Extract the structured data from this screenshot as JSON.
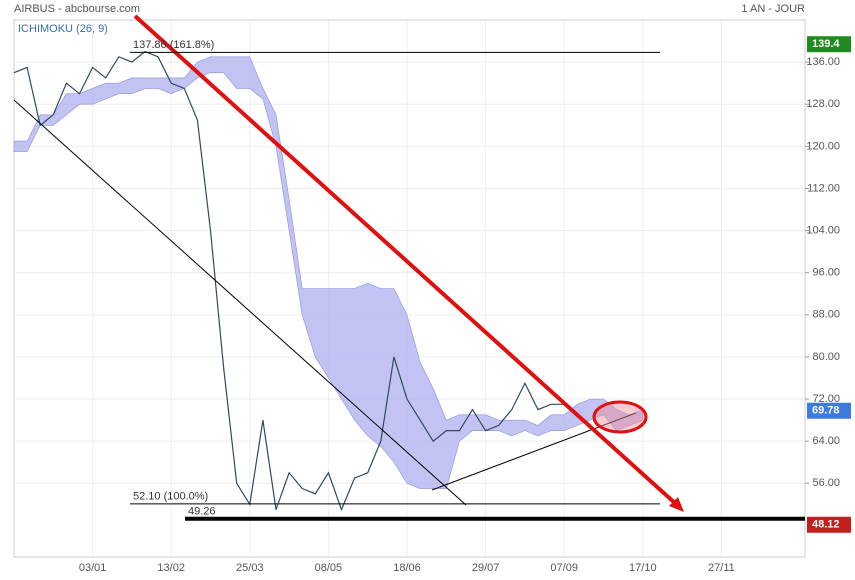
{
  "chart_data": {
    "type": "line",
    "title": "AIRBUS - abcbourse.com",
    "period": "1 AN - JOUR",
    "indicator": "ICHIMOKU (26, 9)",
    "categories": [
      null,
      null,
      null,
      null,
      null,
      null,
      "03/01",
      null,
      null,
      null,
      null,
      null,
      "13/02",
      null,
      null,
      null,
      null,
      null,
      "25/03",
      null,
      null,
      null,
      null,
      null,
      "08/05",
      null,
      null,
      null,
      null,
      null,
      "18/06",
      null,
      null,
      null,
      null,
      null,
      "29/07",
      null,
      null,
      null,
      null,
      null,
      "07/09",
      null,
      null,
      null,
      null,
      null,
      "17/10",
      null,
      null,
      null,
      null,
      null,
      "27/11",
      null,
      null,
      null,
      null,
      null,
      null
    ],
    "price": {
      "color": "#2f4a5e",
      "values": [
        134,
        135,
        124,
        126,
        132,
        130,
        135,
        133,
        137,
        136,
        138,
        137,
        132,
        131,
        125,
        104,
        78,
        56,
        52,
        68,
        51,
        58,
        55,
        54,
        58,
        51,
        57,
        58,
        64,
        80,
        72,
        68,
        64,
        66,
        66,
        70,
        66,
        67,
        70,
        75,
        70,
        71,
        71,
        69,
        null,
        null,
        null,
        null,
        null,
        null,
        null,
        null,
        null,
        null,
        null,
        null,
        null,
        null,
        null,
        null,
        null
      ]
    },
    "cloud": {
      "color": "#b3b3f0",
      "upper": [
        121,
        121,
        126,
        126,
        130,
        130,
        131,
        132,
        132,
        133,
        133,
        133,
        133,
        133,
        136,
        137,
        137,
        137,
        137,
        131,
        126,
        110,
        93,
        93,
        93,
        93,
        93,
        94,
        93,
        93,
        88,
        79,
        74,
        68,
        69,
        69,
        69,
        68,
        68,
        68,
        67,
        69,
        69,
        71,
        72,
        72,
        70,
        69,
        70,
        null,
        null,
        null,
        null,
        null,
        null,
        null,
        null,
        null,
        null,
        null,
        null
      ],
      "lower": [
        119,
        119,
        124,
        124,
        126,
        128,
        128,
        129,
        130,
        130,
        131,
        131,
        130,
        131,
        133,
        134,
        134,
        131,
        131,
        129,
        120,
        104,
        88,
        80,
        76,
        72,
        68,
        65,
        63,
        60,
        56,
        55,
        55,
        55,
        64,
        66,
        66,
        66,
        65,
        66,
        65,
        66,
        66,
        67,
        68,
        69,
        66,
        67,
        68,
        null,
        null,
        null,
        null,
        null,
        null,
        null,
        null,
        null,
        null,
        null,
        null
      ]
    },
    "ylim": [
      42,
      144
    ],
    "yticks": [
      {
        "value": 56,
        "label": "56.00"
      },
      {
        "value": 64,
        "label": "64.00"
      },
      {
        "value": 72,
        "label": "72.00"
      },
      {
        "value": 80,
        "label": "80.00"
      },
      {
        "value": 88,
        "label": "88.00"
      },
      {
        "value": 96,
        "label": "96.00"
      },
      {
        "value": 104,
        "label": "104.00"
      },
      {
        "value": 112,
        "label": "112.00"
      },
      {
        "value": 120,
        "label": "120.00"
      },
      {
        "value": 128,
        "label": "128.00"
      },
      {
        "value": 136,
        "label": "136.00"
      }
    ],
    "levels": [
      {
        "value": 137.86,
        "label": "137.86  (161.8%)"
      },
      {
        "value": 52.1,
        "label": "52.10  (100.0%)"
      },
      {
        "value": 49.26,
        "label": "49.26"
      }
    ],
    "badges": [
      {
        "value": 139.4,
        "label": "139.4",
        "color": "#1f8a1f"
      },
      {
        "value": 69.78,
        "label": "69.78",
        "color": "#3d7be0"
      },
      {
        "value": 48.12,
        "label": "48.12",
        "color": "#c41f1f"
      }
    ],
    "grid": true
  }
}
